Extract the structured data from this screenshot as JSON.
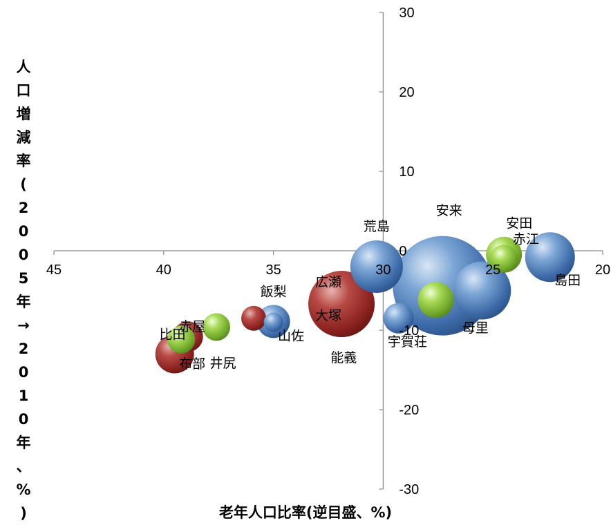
{
  "chart_data": {
    "type": "bubble",
    "xlabel": "老年人口比率(逆目盛、%)",
    "ylabel": "人口増減率(2005年→2010年、%)",
    "x_axis": {
      "min": 20,
      "max": 45,
      "reversed": true,
      "ticks": [
        45,
        40,
        35,
        30,
        25,
        20
      ],
      "tick_labels": [
        "45",
        "40",
        "35",
        "30",
        "25",
        "20"
      ]
    },
    "y_axis": {
      "min": -30,
      "max": 30,
      "ticks": [
        30,
        20,
        10,
        0,
        -10,
        -20,
        -30
      ],
      "tick_labels": [
        "30",
        "20",
        "10",
        "0",
        "-10",
        "-20",
        "-30"
      ],
      "crosses_x_at": 30
    },
    "colors": {
      "blue": "#4f81bd",
      "red": "#a0282a",
      "green": "#8dc63f"
    },
    "points": [
      {
        "name": "安来",
        "x": 27.3,
        "y": -4.4,
        "size": 72,
        "color": "blue"
      },
      {
        "name": "荒島",
        "x": 30.3,
        "y": -2.0,
        "size": 38,
        "color": "blue"
      },
      {
        "name": "母里",
        "x": 25.5,
        "y": -5.0,
        "size": 42,
        "color": "blue"
      },
      {
        "name": "島田",
        "x": 22.4,
        "y": -0.8,
        "size": 36,
        "color": "blue"
      },
      {
        "name": "宇賀荘",
        "x": 29.3,
        "y": -8.5,
        "size": 22,
        "color": "blue"
      },
      {
        "name": "飯梨",
        "x": 35.0,
        "y": -8.9,
        "size": 24,
        "color": "blue"
      },
      {
        "name": "山佐",
        "x": 35.0,
        "y": -9.0,
        "size": 14,
        "color": "blue"
      },
      {
        "name": "安田",
        "x": 24.5,
        "y": -0.5,
        "size": 26,
        "color": "green"
      },
      {
        "name": "赤江",
        "x": 24.5,
        "y": -1.0,
        "size": 20,
        "color": "green"
      },
      {
        "name": "大塚",
        "x": 27.6,
        "y": -6.2,
        "size": 26,
        "color": "green"
      },
      {
        "name": "井尻",
        "x": 37.6,
        "y": -9.6,
        "size": 20,
        "color": "green"
      },
      {
        "name": "比田",
        "x": 39.2,
        "y": -11.2,
        "size": 20,
        "color": "green"
      },
      {
        "name": "広瀬",
        "x": 31.9,
        "y": -6.7,
        "size": 48,
        "color": "red"
      },
      {
        "name": "能義",
        "x": 35.9,
        "y": -8.5,
        "size": 18,
        "color": "red"
      },
      {
        "name": "赤屋",
        "x": 38.9,
        "y": -10.8,
        "size": 22,
        "color": "red"
      },
      {
        "name": "布部",
        "x": 39.5,
        "y": -13.0,
        "size": 28,
        "color": "red"
      }
    ],
    "point_labels": [
      {
        "text": "安来",
        "x": 27.0,
        "y": 5.0
      },
      {
        "text": "荒島",
        "x": 30.3,
        "y": 3.0
      },
      {
        "text": "安田",
        "x": 23.8,
        "y": 3.4
      },
      {
        "text": "赤江",
        "x": 23.5,
        "y": 1.4
      },
      {
        "text": "島田",
        "x": 21.6,
        "y": -3.8
      },
      {
        "text": "母里",
        "x": 25.8,
        "y": -9.8
      },
      {
        "text": "宇賀荘",
        "x": 28.9,
        "y": -11.5
      },
      {
        "text": "広瀬",
        "x": 32.5,
        "y": -4.0
      },
      {
        "text": "大塚",
        "x": 32.5,
        "y": -8.2
      },
      {
        "text": "能義",
        "x": 31.8,
        "y": -13.5
      },
      {
        "text": "飯梨",
        "x": 35.0,
        "y": -5.2
      },
      {
        "text": "山佐",
        "x": 34.2,
        "y": -10.8
      },
      {
        "text": "赤屋",
        "x": 38.7,
        "y": -9.6
      },
      {
        "text": "比田",
        "x": 39.6,
        "y": -10.6
      },
      {
        "text": "井尻",
        "x": 37.3,
        "y": -14.2
      },
      {
        "text": "布部",
        "x": 38.7,
        "y": -14.3
      }
    ]
  }
}
